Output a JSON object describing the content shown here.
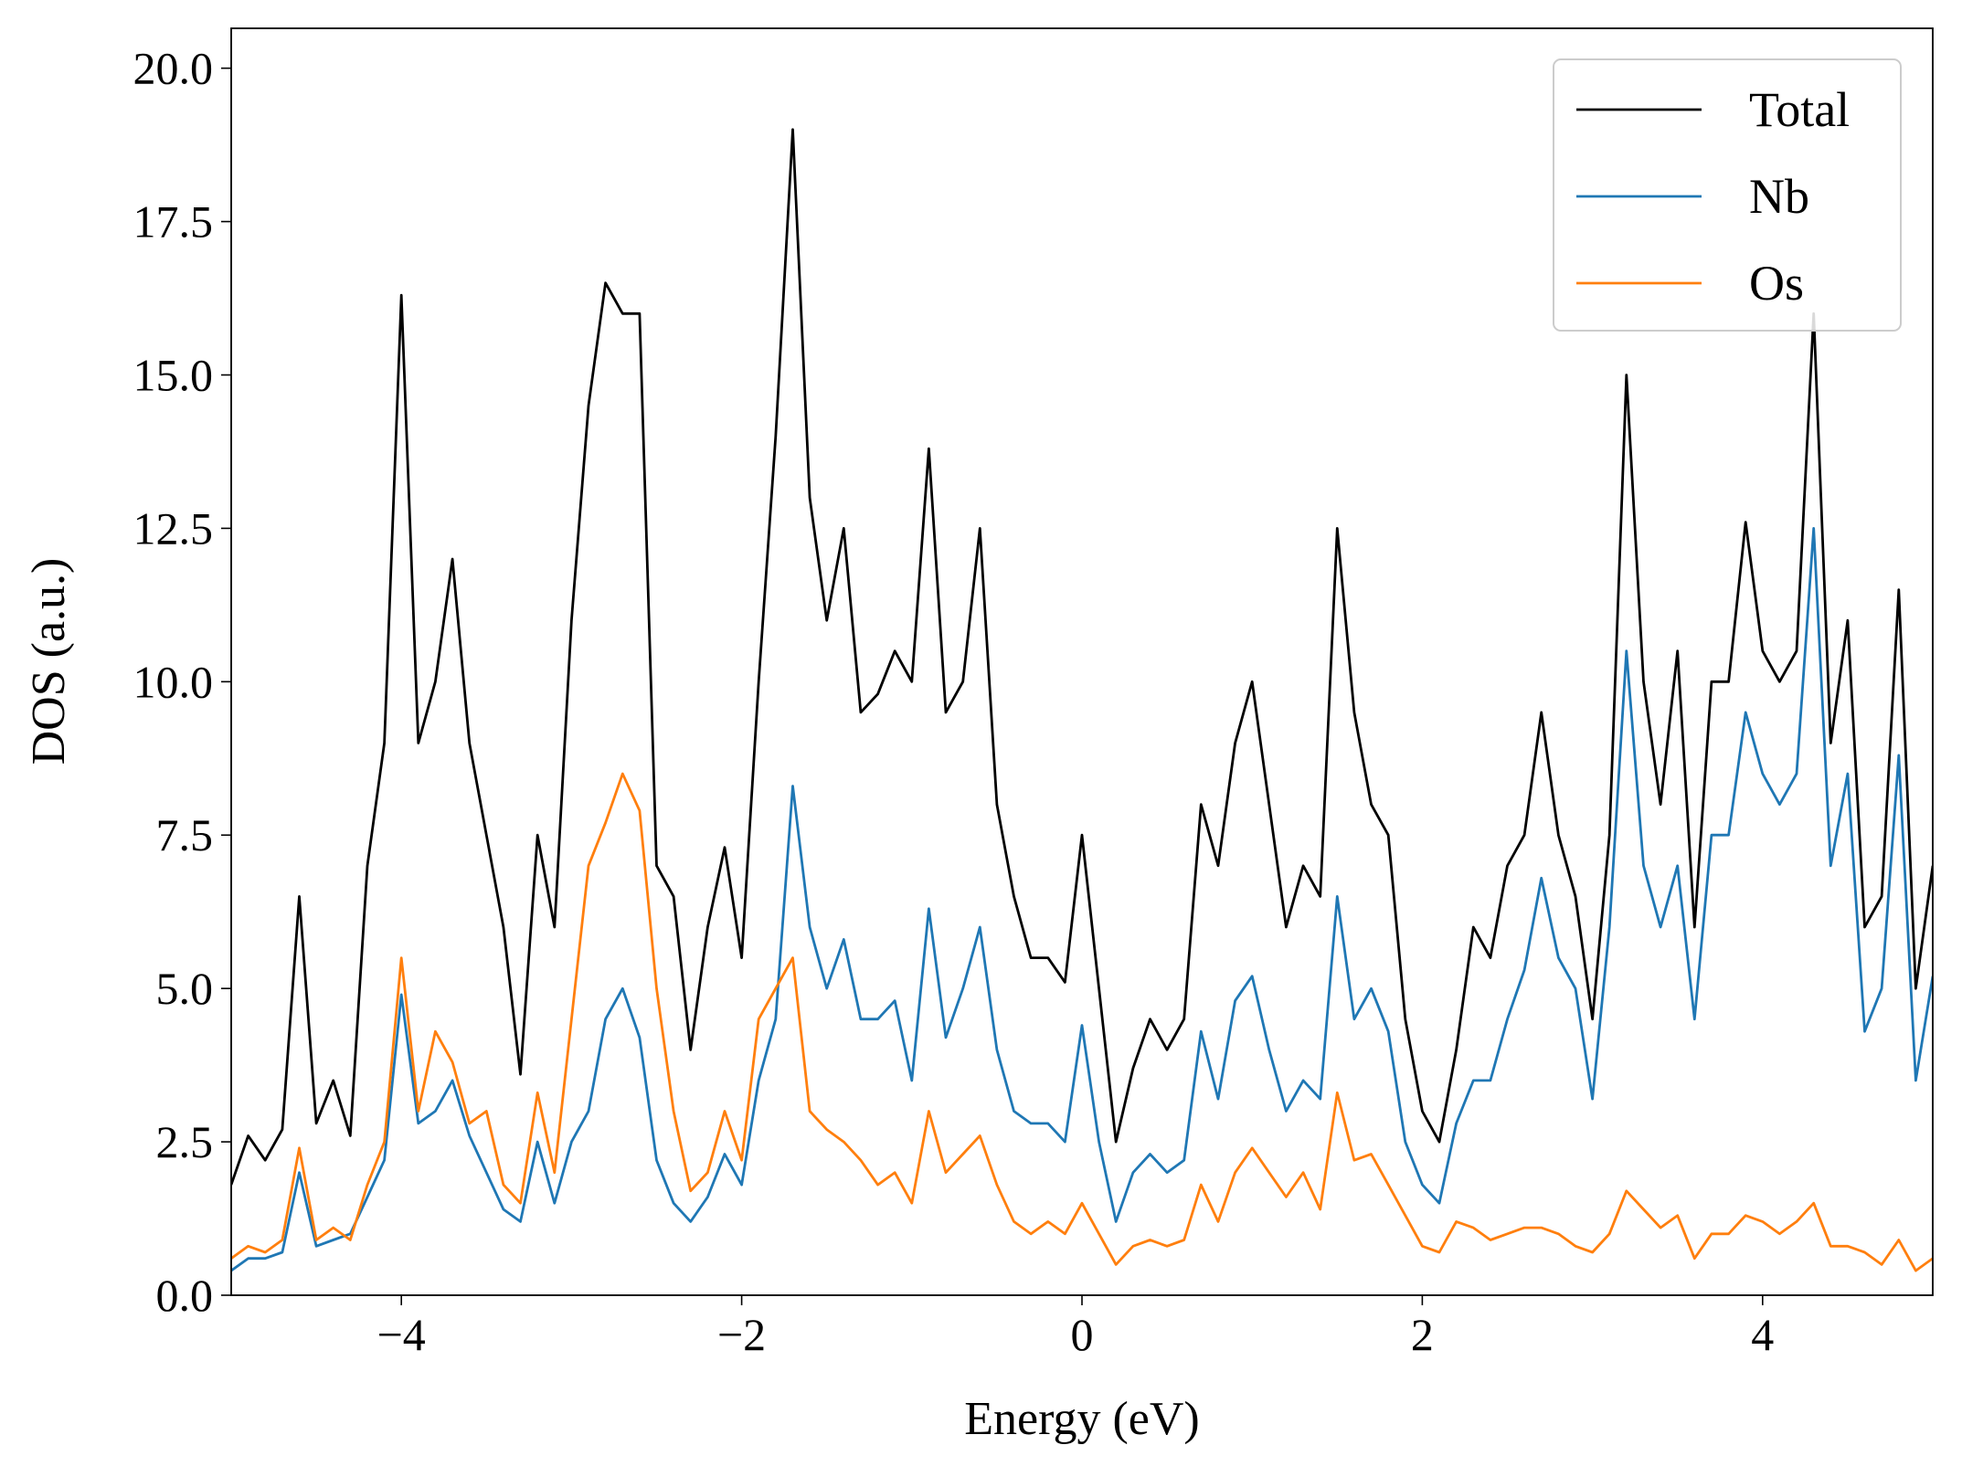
{
  "chart_data": {
    "type": "line",
    "xlabel": "Energy (eV)",
    "ylabel": "DOS (a.u.)",
    "xlim": [
      -5,
      5
    ],
    "ylim": [
      0,
      20.65
    ],
    "xticks": [
      {
        "value": -4,
        "label": "−4"
      },
      {
        "value": -2,
        "label": "−2"
      },
      0,
      2,
      4
    ],
    "yticks": [
      {
        "value": 0,
        "label": "0.0"
      },
      2.5,
      {
        "value": 5,
        "label": "5.0"
      },
      7.5,
      {
        "value": 10,
        "label": "10.0"
      },
      12.5,
      {
        "value": 15,
        "label": "15.0"
      },
      17.5,
      {
        "value": 20,
        "label": "20.0"
      }
    ],
    "legend": "upper right",
    "x": [
      -5.0,
      -4.9,
      -4.8,
      -4.7,
      -4.6,
      -4.5,
      -4.4,
      -4.3,
      -4.2,
      -4.1,
      -4.0,
      -3.9,
      -3.8,
      -3.7,
      -3.6,
      -3.5,
      -3.4,
      -3.3,
      -3.2,
      -3.1,
      -3.0,
      -2.9,
      -2.8,
      -2.7,
      -2.6,
      -2.5,
      -2.4,
      -2.3,
      -2.2,
      -2.1,
      -2.0,
      -1.9,
      -1.8,
      -1.7,
      -1.6,
      -1.5,
      -1.4,
      -1.3,
      -1.2,
      -1.1,
      -1.0,
      -0.9,
      -0.8,
      -0.7,
      -0.6,
      -0.5,
      -0.4,
      -0.3,
      -0.2,
      -0.1,
      0.0,
      0.1,
      0.2,
      0.3,
      0.4,
      0.5,
      0.6,
      0.7,
      0.8,
      0.9,
      1.0,
      1.1,
      1.2,
      1.3,
      1.4,
      1.5,
      1.6,
      1.7,
      1.8,
      1.9,
      2.0,
      2.1,
      2.2,
      2.3,
      2.4,
      2.5,
      2.6,
      2.7,
      2.8,
      2.9,
      3.0,
      3.1,
      3.2,
      3.3,
      3.4,
      3.5,
      3.6,
      3.7,
      3.8,
      3.9,
      4.0,
      4.1,
      4.2,
      4.3,
      4.4,
      4.5,
      4.6,
      4.7,
      4.8,
      4.9,
      5.0
    ],
    "series": [
      {
        "name": "Total",
        "color": "#000000",
        "values": [
          1.8,
          2.6,
          2.2,
          2.7,
          6.5,
          2.8,
          3.5,
          2.6,
          7.0,
          9.0,
          16.3,
          9.0,
          10.0,
          12.0,
          9.0,
          7.5,
          6.0,
          3.6,
          7.5,
          6.0,
          11.0,
          14.5,
          16.5,
          16.0,
          16.0,
          7.0,
          6.5,
          4.0,
          6.0,
          7.3,
          5.5,
          10.0,
          14.0,
          19.0,
          13.0,
          11.0,
          12.5,
          9.5,
          9.8,
          10.5,
          10.0,
          13.8,
          9.5,
          10.0,
          12.5,
          8.0,
          6.5,
          5.5,
          5.5,
          5.1,
          7.5,
          5.0,
          2.5,
          3.7,
          4.5,
          4.0,
          4.5,
          8.0,
          7.0,
          9.0,
          10.0,
          8.0,
          6.0,
          7.0,
          6.5,
          12.5,
          9.5,
          8.0,
          7.5,
          4.5,
          3.0,
          2.5,
          4.0,
          6.0,
          5.5,
          7.0,
          7.5,
          9.5,
          7.5,
          6.5,
          4.5,
          7.5,
          15.0,
          10.0,
          8.0,
          10.5,
          6.0,
          10.0,
          10.0,
          12.6,
          10.5,
          10.0,
          10.5,
          16.0,
          9.0,
          11.0,
          6.0,
          6.5,
          11.5,
          5.0,
          7.0
        ]
      },
      {
        "name": "Nb",
        "color": "#1f77b4",
        "values": [
          0.4,
          0.6,
          0.6,
          0.7,
          2.0,
          0.8,
          0.9,
          1.0,
          1.6,
          2.2,
          4.9,
          2.8,
          3.0,
          3.5,
          2.6,
          2.0,
          1.4,
          1.2,
          2.5,
          1.5,
          2.5,
          3.0,
          4.5,
          5.0,
          4.2,
          2.2,
          1.5,
          1.2,
          1.6,
          2.3,
          1.8,
          3.5,
          4.5,
          8.3,
          6.0,
          5.0,
          5.8,
          4.5,
          4.5,
          4.8,
          3.5,
          6.3,
          4.2,
          5.0,
          6.0,
          4.0,
          3.0,
          2.8,
          2.8,
          2.5,
          4.4,
          2.5,
          1.2,
          2.0,
          2.3,
          2.0,
          2.2,
          4.3,
          3.2,
          4.8,
          5.2,
          4.0,
          3.0,
          3.5,
          3.2,
          6.5,
          4.5,
          5.0,
          4.3,
          2.5,
          1.8,
          1.5,
          2.8,
          3.5,
          3.5,
          4.5,
          5.3,
          6.8,
          5.5,
          5.0,
          3.2,
          6.0,
          10.5,
          7.0,
          6.0,
          7.0,
          4.5,
          7.5,
          7.5,
          9.5,
          8.5,
          8.0,
          8.5,
          12.5,
          7.0,
          8.5,
          4.3,
          5.0,
          8.8,
          3.5,
          5.2
        ]
      },
      {
        "name": "Os",
        "color": "#ff7f0e",
        "values": [
          0.6,
          0.8,
          0.7,
          0.9,
          2.4,
          0.9,
          1.1,
          0.9,
          1.8,
          2.5,
          5.5,
          3.0,
          4.3,
          3.8,
          2.8,
          3.0,
          1.8,
          1.5,
          3.3,
          2.0,
          4.5,
          7.0,
          7.7,
          8.5,
          7.9,
          5.0,
          3.0,
          1.7,
          2.0,
          3.0,
          2.2,
          4.5,
          5.0,
          5.5,
          3.0,
          2.7,
          2.5,
          2.2,
          1.8,
          2.0,
          1.5,
          3.0,
          2.0,
          2.3,
          2.6,
          1.8,
          1.2,
          1.0,
          1.2,
          1.0,
          1.5,
          1.0,
          0.5,
          0.8,
          0.9,
          0.8,
          0.9,
          1.8,
          1.2,
          2.0,
          2.4,
          2.0,
          1.6,
          2.0,
          1.4,
          3.3,
          2.2,
          2.3,
          1.8,
          1.3,
          0.8,
          0.7,
          1.2,
          1.1,
          0.9,
          1.0,
          1.1,
          1.1,
          1.0,
          0.8,
          0.7,
          1.0,
          1.7,
          1.4,
          1.1,
          1.3,
          0.6,
          1.0,
          1.0,
          1.3,
          1.2,
          1.0,
          1.2,
          1.5,
          0.8,
          0.8,
          0.7,
          0.5,
          0.9,
          0.4,
          0.6
        ]
      }
    ]
  }
}
